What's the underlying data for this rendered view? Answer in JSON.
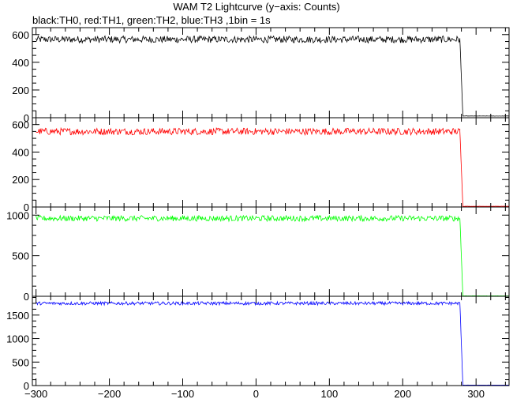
{
  "chart_data": {
    "type": "line",
    "title": "WAM T2 Lightcurve (y−axis: Counts)",
    "subtitle": "black:TH0, red:TH1, green:TH2, blue:TH3 ,1bin = 1s",
    "xlabel": "",
    "xlim": [
      -305,
      345
    ],
    "x_ticks": [
      -300,
      -200,
      -100,
      0,
      100,
      200,
      300
    ],
    "drop_time": 278,
    "panels": [
      {
        "name": "TH0",
        "color": "#000000",
        "ylim": [
          0,
          650
        ],
        "y_ticks": [
          0,
          200,
          400,
          600
        ],
        "segments": [
          {
            "x": [
              -300,
              278
            ],
            "y": [
              565,
              565
            ],
            "noise": 25
          },
          {
            "x": [
              278,
              282
            ],
            "y": [
              565,
              12
            ],
            "noise": 0
          },
          {
            "x": [
              282,
              345
            ],
            "y": [
              12,
              12
            ],
            "noise": 1
          }
        ]
      },
      {
        "name": "TH1",
        "color": "#ff0000",
        "ylim": [
          0,
          650
        ],
        "y_ticks": [
          0,
          200,
          400,
          600
        ],
        "segments": [
          {
            "x": [
              -300,
              278
            ],
            "y": [
              550,
              550
            ],
            "noise": 25
          },
          {
            "x": [
              278,
              282
            ],
            "y": [
              550,
              5
            ],
            "noise": 0
          },
          {
            "x": [
              282,
              345
            ],
            "y": [
              5,
              5
            ],
            "noise": 1
          }
        ]
      },
      {
        "name": "TH2",
        "color": "#00ff00",
        "ylim": [
          0,
          1100
        ],
        "y_ticks": [
          0,
          500,
          1000
        ],
        "segments": [
          {
            "x": [
              -300,
              278
            ],
            "y": [
              960,
              960
            ],
            "noise": 35
          },
          {
            "x": [
              278,
              282
            ],
            "y": [
              960,
              5
            ],
            "noise": 0
          },
          {
            "x": [
              282,
              345
            ],
            "y": [
              5,
              5
            ],
            "noise": 1
          }
        ]
      },
      {
        "name": "TH3",
        "color": "#0000ff",
        "ylim": [
          0,
          1900
        ],
        "y_ticks": [
          0,
          500,
          1000,
          1500
        ],
        "segments": [
          {
            "x": [
              -300,
              278
            ],
            "y": [
              1750,
              1750
            ],
            "noise": 35
          },
          {
            "x": [
              278,
              282
            ],
            "y": [
              1750,
              10
            ],
            "noise": 0
          },
          {
            "x": [
              282,
              345
            ],
            "y": [
              10,
              10
            ],
            "noise": 1
          }
        ]
      }
    ]
  }
}
